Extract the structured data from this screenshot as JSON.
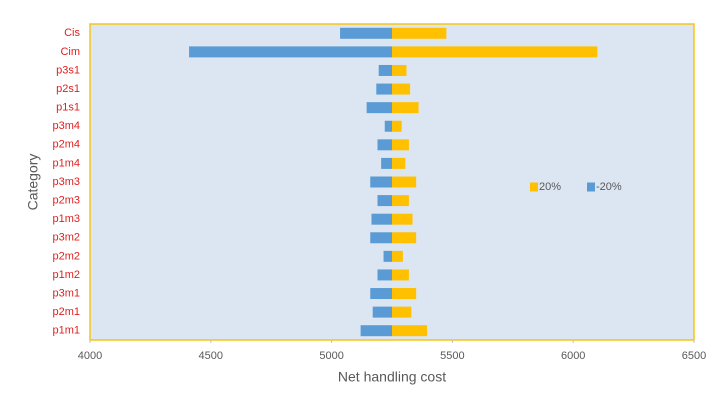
{
  "chart_data": {
    "type": "tornado",
    "x_label": "Net handling cost",
    "y_label": "Category",
    "categories": [
      "Cis",
      "Cim",
      "p3s1",
      "p2s1",
      "p1s1",
      "p3m4",
      "p2m4",
      "p1m4",
      "p3m3",
      "p2m3",
      "p1m3",
      "p3m2",
      "p2m2",
      "p1m2",
      "p3m1",
      "p2m1",
      "p1m1"
    ],
    "base": 5250,
    "series": [
      {
        "name": "20%",
        "color": "#ffc000",
        "values": [
          5475,
          6100,
          5310,
          5325,
          5360,
          5290,
          5320,
          5305,
          5350,
          5320,
          5335,
          5350,
          5295,
          5320,
          5350,
          5330,
          5395
        ]
      },
      {
        "name": "-20%",
        "color": "#5b9bd5",
        "values": [
          5035,
          4410,
          5195,
          5185,
          5145,
          5220,
          5190,
          5205,
          5160,
          5190,
          5165,
          5160,
          5215,
          5190,
          5160,
          5170,
          5120
        ]
      }
    ],
    "xlim": [
      4000,
      6500
    ],
    "xticks": [
      4000,
      4500,
      5000,
      5500,
      6000,
      6500
    ]
  }
}
